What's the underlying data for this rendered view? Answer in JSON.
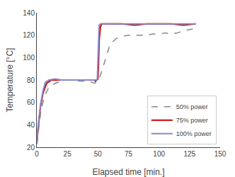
{
  "chart_data": {
    "type": "line",
    "xlabel": "Elapsed time [min.]",
    "ylabel": "Temperature [°C]",
    "xlim": [
      0,
      150
    ],
    "ylim": [
      20,
      140
    ],
    "xticks": [
      0,
      25,
      50,
      75,
      100,
      125,
      150
    ],
    "yticks": [
      20,
      40,
      60,
      80,
      100,
      120,
      140
    ],
    "grid": false,
    "legend": "lower right",
    "series": [
      {
        "name": "50% power",
        "color": "#888888",
        "line_style": "dashed",
        "x": [
          0,
          1,
          3,
          6,
          10,
          15,
          20,
          25,
          30,
          35,
          40,
          43,
          45,
          47,
          49,
          50,
          52,
          54,
          57,
          60,
          65,
          70,
          75,
          80,
          85,
          90,
          95,
          100,
          105,
          110,
          115,
          120,
          125,
          130
        ],
        "values": [
          23,
          32,
          50,
          65,
          74,
          77,
          79,
          80,
          80,
          79,
          79,
          79,
          78,
          77,
          78,
          79,
          84,
          91,
          103,
          112,
          117,
          119,
          120,
          120,
          120,
          120,
          121,
          121,
          122,
          121,
          122,
          124,
          125,
          126
        ]
      },
      {
        "name": "75% power",
        "color": "#cc0000",
        "line_style": "solid",
        "x": [
          0,
          1,
          3,
          5,
          8,
          12,
          15,
          20,
          25,
          30,
          35,
          40,
          43,
          45,
          47,
          48,
          49,
          50,
          50.5,
          51,
          52,
          53,
          54,
          56,
          60,
          70,
          80,
          90,
          100,
          110,
          120,
          130
        ],
        "values": [
          23,
          36,
          56,
          68,
          77,
          80,
          80,
          80,
          80,
          80,
          80,
          80,
          80,
          80,
          80,
          79,
          80,
          81,
          95,
          115,
          127,
          130,
          130,
          130,
          130,
          130,
          129,
          130,
          130,
          130,
          129,
          130
        ]
      },
      {
        "name": "100% power",
        "color": "#8888cc",
        "line_style": "solid",
        "x": [
          0,
          1,
          3,
          5,
          7,
          10,
          15,
          20,
          25,
          30,
          35,
          40,
          43,
          45,
          47,
          48,
          49,
          49.5,
          50,
          50.5,
          51,
          52,
          53,
          56,
          60,
          70,
          80,
          90,
          100,
          110,
          120,
          130
        ],
        "values": [
          23,
          38,
          58,
          70,
          78,
          80,
          81,
          80,
          80,
          80,
          80,
          80,
          80,
          80,
          80,
          80,
          80,
          81,
          100,
          120,
          129,
          130,
          130,
          130,
          130,
          130,
          130,
          130,
          130,
          130,
          130,
          130
        ]
      }
    ]
  }
}
